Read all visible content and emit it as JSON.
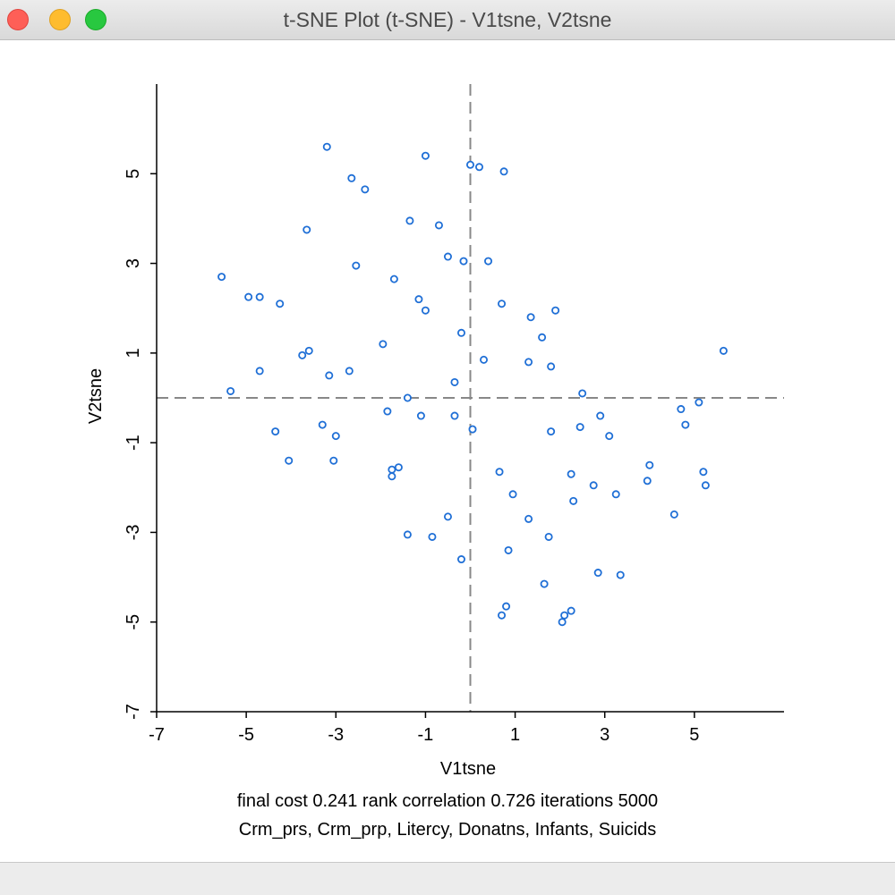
{
  "window": {
    "title": "t-SNE Plot (t-SNE) - V1tsne, V2tsne"
  },
  "footer": {
    "line1": "final cost  0.241   rank correlation   0.726   iterations   5000",
    "line2": "Crm_prs, Crm_prp, Litercy, Donatns, Infants, Suicids"
  },
  "colors": {
    "point": "#1f6fd6",
    "axis": "#000000",
    "refline": "#888888"
  },
  "chart_data": {
    "type": "scatter",
    "xlabel": "V1tsne",
    "ylabel": "V2tsne",
    "xlim": [
      -7,
      7
    ],
    "ylim": [
      -7,
      7
    ],
    "xticks": [
      -7,
      -5,
      -3,
      -1,
      1,
      3,
      5
    ],
    "yticks": [
      -7,
      -5,
      -3,
      -1,
      1,
      3,
      5
    ],
    "reference_lines": {
      "x": 0,
      "y": 0,
      "style": "dashed"
    },
    "grid": false,
    "points": [
      [
        -3.2,
        5.6
      ],
      [
        -1.0,
        5.4
      ],
      [
        0.0,
        5.2
      ],
      [
        0.2,
        5.15
      ],
      [
        0.75,
        5.05
      ],
      [
        -2.65,
        4.9
      ],
      [
        -2.35,
        4.65
      ],
      [
        -1.35,
        3.95
      ],
      [
        -0.7,
        3.85
      ],
      [
        -3.65,
        3.75
      ],
      [
        -0.5,
        3.15
      ],
      [
        -0.15,
        3.05
      ],
      [
        0.4,
        3.05
      ],
      [
        -2.55,
        2.95
      ],
      [
        -5.55,
        2.7
      ],
      [
        -1.7,
        2.65
      ],
      [
        -4.95,
        2.25
      ],
      [
        -4.7,
        2.25
      ],
      [
        -1.15,
        2.2
      ],
      [
        -4.25,
        2.1
      ],
      [
        0.7,
        2.1
      ],
      [
        -1.0,
        1.95
      ],
      [
        1.9,
        1.95
      ],
      [
        1.35,
        1.8
      ],
      [
        -0.2,
        1.45
      ],
      [
        1.6,
        1.35
      ],
      [
        -1.95,
        1.2
      ],
      [
        5.65,
        1.05
      ],
      [
        -3.6,
        1.05
      ],
      [
        -3.75,
        0.95
      ],
      [
        0.3,
        0.85
      ],
      [
        1.3,
        0.8
      ],
      [
        1.8,
        0.7
      ],
      [
        -4.7,
        0.6
      ],
      [
        -2.7,
        0.6
      ],
      [
        -3.15,
        0.5
      ],
      [
        -0.35,
        0.35
      ],
      [
        -5.35,
        0.15
      ],
      [
        2.5,
        0.1
      ],
      [
        -1.4,
        0.0
      ],
      [
        5.1,
        -0.1
      ],
      [
        4.7,
        -0.25
      ],
      [
        -1.85,
        -0.3
      ],
      [
        -0.35,
        -0.4
      ],
      [
        2.9,
        -0.4
      ],
      [
        -1.1,
        -0.4
      ],
      [
        -3.3,
        -0.6
      ],
      [
        4.8,
        -0.6
      ],
      [
        2.45,
        -0.65
      ],
      [
        -4.35,
        -0.75
      ],
      [
        1.8,
        -0.75
      ],
      [
        0.05,
        -0.7
      ],
      [
        -3.0,
        -0.85
      ],
      [
        3.1,
        -0.85
      ],
      [
        -4.05,
        -1.4
      ],
      [
        -3.05,
        -1.4
      ],
      [
        4.0,
        -1.5
      ],
      [
        -1.6,
        -1.55
      ],
      [
        -1.75,
        -1.6
      ],
      [
        0.65,
        -1.65
      ],
      [
        5.2,
        -1.65
      ],
      [
        2.25,
        -1.7
      ],
      [
        -1.75,
        -1.75
      ],
      [
        3.95,
        -1.85
      ],
      [
        5.25,
        -1.95
      ],
      [
        2.75,
        -1.95
      ],
      [
        0.95,
        -2.15
      ],
      [
        3.25,
        -2.15
      ],
      [
        2.3,
        -2.3
      ],
      [
        4.55,
        -2.6
      ],
      [
        -0.5,
        -2.65
      ],
      [
        1.3,
        -2.7
      ],
      [
        -1.4,
        -3.05
      ],
      [
        -0.85,
        -3.1
      ],
      [
        1.75,
        -3.1
      ],
      [
        0.85,
        -3.4
      ],
      [
        -0.2,
        -3.6
      ],
      [
        2.85,
        -3.9
      ],
      [
        3.35,
        -3.95
      ],
      [
        1.65,
        -4.15
      ],
      [
        0.8,
        -4.65
      ],
      [
        2.25,
        -4.75
      ],
      [
        0.7,
        -4.85
      ],
      [
        2.1,
        -4.85
      ],
      [
        2.05,
        -5.0
      ]
    ]
  }
}
